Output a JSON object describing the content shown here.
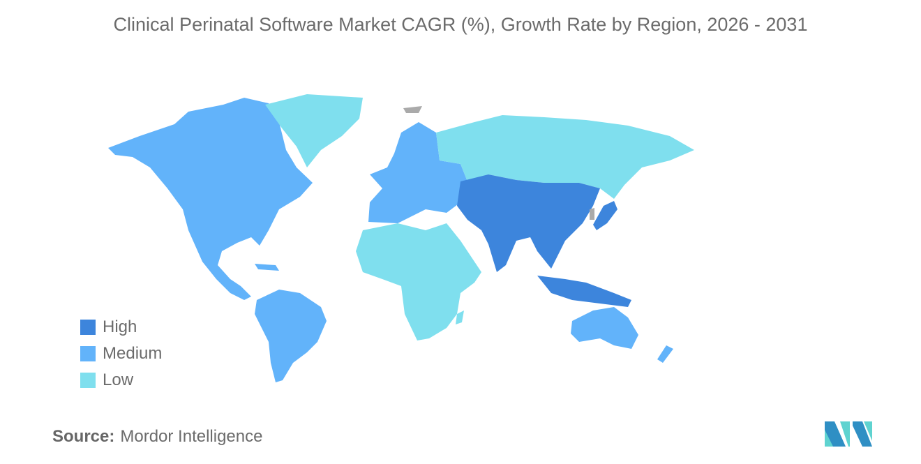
{
  "title": "Clinical Perinatal Software Market CAGR (%), Growth Rate by Region, 2026 - 2031",
  "legend": [
    {
      "label": "High",
      "color": "#3d85dc"
    },
    {
      "label": "Medium",
      "color": "#62b3fa"
    },
    {
      "label": "Low",
      "color": "#7fdfee"
    }
  ],
  "regions": [
    {
      "name": "North America",
      "level": "Medium"
    },
    {
      "name": "South America",
      "level": "Medium"
    },
    {
      "name": "Europe",
      "level": "Medium"
    },
    {
      "name": "Greenland",
      "level": "Low"
    },
    {
      "name": "Russia",
      "level": "Low"
    },
    {
      "name": "Middle East and Africa",
      "level": "Low"
    },
    {
      "name": "Asia",
      "level": "High"
    },
    {
      "name": "Japan",
      "level": "High"
    },
    {
      "name": "Southeast Asia",
      "level": "High"
    },
    {
      "name": "Australia and New Zealand",
      "level": "Medium"
    }
  ],
  "no_data_color": "#aaaaaa",
  "source": {
    "label": "Source:",
    "value": "Mordor Intelligence"
  }
}
